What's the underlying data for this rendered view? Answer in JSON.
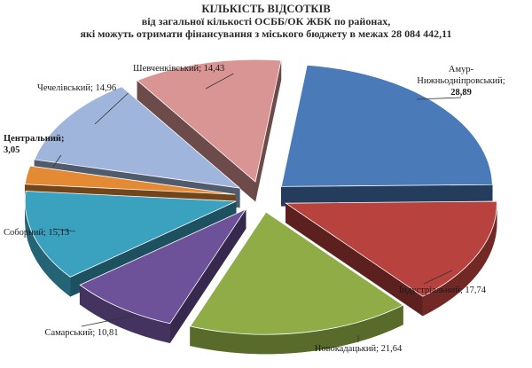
{
  "chart_data": {
    "type": "pie",
    "title": "КІЛЬКІСТЬ ВІДСОТКІВ",
    "subtitle_lines": [
      "від загальної кількості ОСББ/ОК ЖБК по районах,",
      "які можуть отримати фінансування з міського бюджету в межах 28 084 442,11"
    ],
    "slices": [
      {
        "label_lines": [
          "Амур-",
          "Нижньодніпровський;",
          "28,89"
        ],
        "value": 28.89,
        "color": "#4a7ab8"
      },
      {
        "label_lines": [
          "Індустріальний; 17,74"
        ],
        "value": 17.74,
        "color": "#b8423d"
      },
      {
        "label_lines": [
          "Новокадацький; 21,64"
        ],
        "value": 21.64,
        "color": "#8fac46"
      },
      {
        "label_lines": [
          "Самарський; 10,81"
        ],
        "value": 10.81,
        "color": "#6d529a"
      },
      {
        "label_lines": [
          "Соборний; 15,13"
        ],
        "value": 15.13,
        "color": "#3aa1be"
      },
      {
        "label_lines": [
          "Центральний;",
          "3,05"
        ],
        "value": 3.05,
        "color": "#e48a35"
      },
      {
        "label_lines": [
          "Чечелівський; 14,96"
        ],
        "value": 14.96,
        "color": "#9fb5dc"
      },
      {
        "label_lines": [
          "Шевченківський; 14,43"
        ],
        "value": 14.43,
        "color": "#d89594"
      }
    ],
    "legend": "none",
    "grid": false
  }
}
